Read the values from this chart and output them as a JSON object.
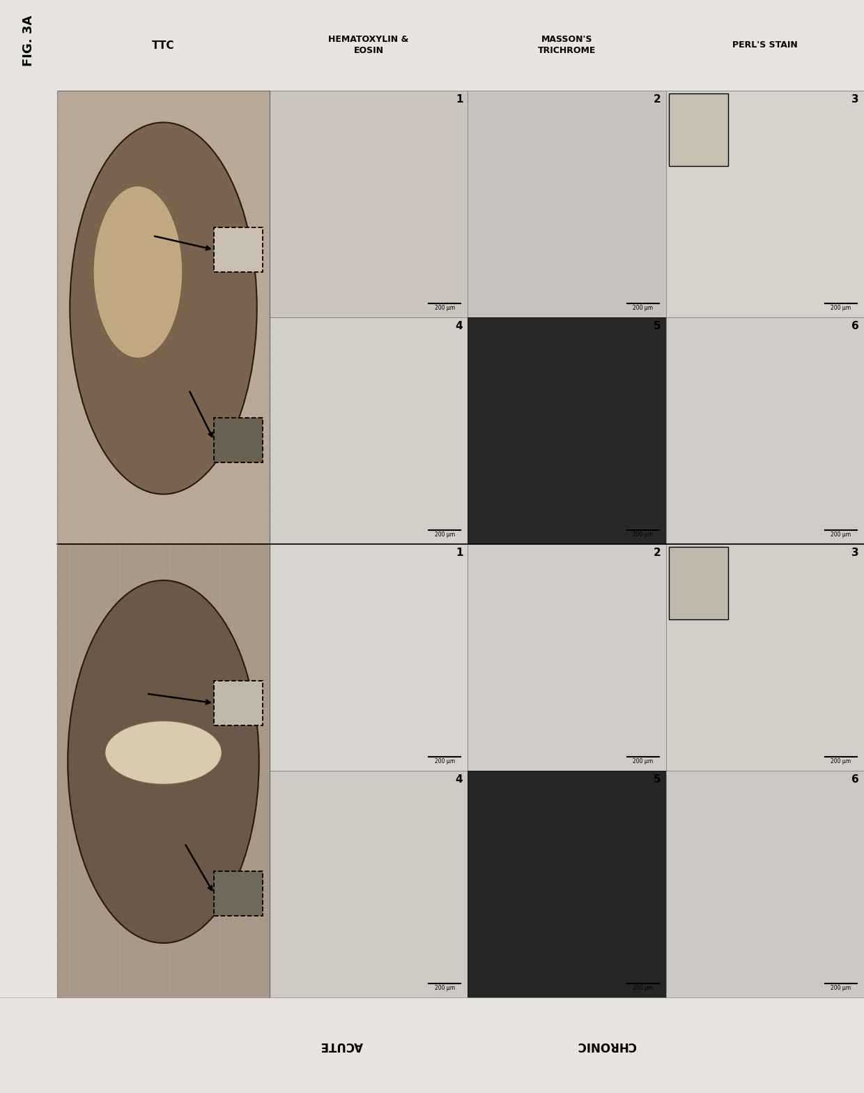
{
  "title": "FIG. 3A",
  "background_color": "#f0eeea",
  "col_headers": [
    "TTC",
    "HEMATOXYLIN &\nEOSIN",
    "MASSON'S\nTRICHROME",
    "PERL'S STAIN"
  ],
  "row_labels": [
    "ACUTE",
    "CHRONIC"
  ],
  "scale_bar_text": "200 μm",
  "outer_bg": "#e8e5e0",
  "header_bg": "#e8e5e0",
  "panel_colors": {
    "he_acute_1": "#ccc6be",
    "he_acute_4": "#d2cec8",
    "mason_acute_2": "#c8c3be",
    "mason_acute_5": "#282828",
    "perl_acute_3": "#d5d2cc",
    "perl_acute_6": "#d0cdc8",
    "he_chr_1": "#d8d5d0",
    "he_chr_4": "#cecac3",
    "mason_chr_2": "#d0cdc8",
    "mason_chr_5": "#252525",
    "perl_chr_3": "#d2cfc9",
    "perl_chr_6": "#ccc9c4"
  },
  "ttc_acute_bg": "#b8a898",
  "ttc_chronic_bg": "#a89888",
  "ttc_tissue_acute": "#7a6450",
  "ttc_tissue_chronic": "#6a5848",
  "ttc_infarct_acute": "#c0a880",
  "ttc_scar_chronic": "#d8cbb0",
  "grid_color": "#c8b8a8",
  "inset_acute_light": "#c8bfb0",
  "inset_acute_dark": "#686050",
  "inset_chr_light": "#c0b8a8",
  "inset_chr_dark": "#706858"
}
